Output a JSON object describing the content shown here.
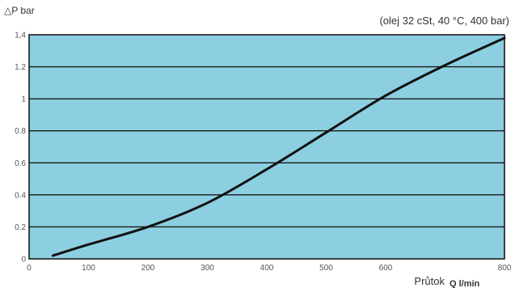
{
  "chart_data": {
    "type": "line",
    "title": "",
    "subtitle": "(olej 32 cSt, 40 °C, 400 bar)",
    "ylabel": "△P bar",
    "xlabel_prefix": "Průtok",
    "xlabel_unit": "Q l/min",
    "xlim": [
      0,
      800
    ],
    "ylim": [
      0,
      1.4
    ],
    "xticks": [
      0,
      100,
      200,
      300,
      400,
      500,
      600,
      800
    ],
    "xtick_labels": [
      "0",
      "100",
      "200",
      "300",
      "400",
      "500",
      "600",
      "800"
    ],
    "yticks": [
      0,
      0.2,
      0.4,
      0.6,
      0.8,
      1,
      1.2,
      1.4
    ],
    "ytick_labels": [
      "0",
      "0.2",
      "0.4",
      "0.6",
      "0.8",
      "1",
      "1.2",
      "1,4"
    ],
    "grid": "horizontal",
    "legend": "none",
    "series": [
      {
        "x": [
          40,
          100,
          200,
          300,
          400,
          500,
          600,
          700,
          800
        ],
        "y": [
          0.02,
          0.09,
          0.2,
          0.35,
          0.56,
          0.79,
          1.02,
          1.21,
          1.38
        ]
      }
    ],
    "colors": {
      "plot_background": "#8ccfe0",
      "line": "#111111",
      "grid": "#1a1a1a",
      "frame": "#1a1a1a"
    }
  }
}
